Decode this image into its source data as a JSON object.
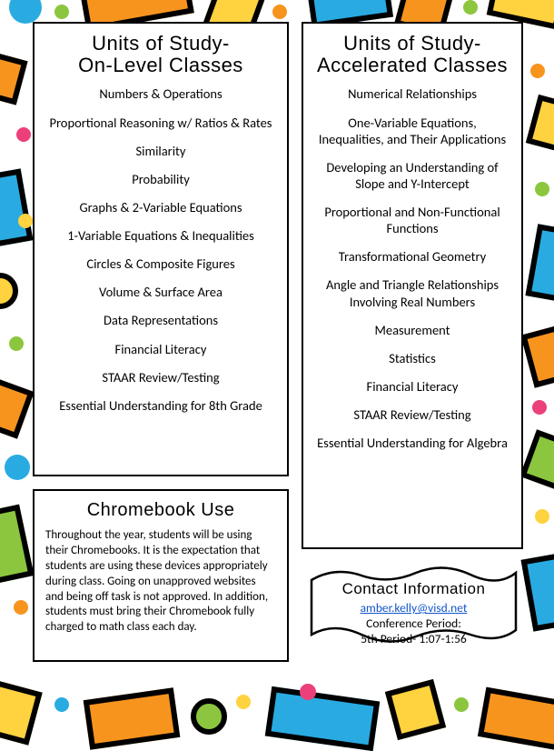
{
  "onLevel": {
    "title1": "Units of Study-",
    "title2": "On-Level Classes",
    "items": [
      "Numbers & Operations",
      "Proportional Reasoning w/ Ratios & Rates",
      "Similarity",
      "Probability",
      "Graphs & 2-Variable Equations",
      "1-Variable Equations & Inequalities",
      "Circles & Composite Figures",
      "Volume & Surface Area",
      "Data Representations",
      "Financial Literacy",
      "STAAR Review/Testing",
      "Essential Understanding for 8th Grade"
    ]
  },
  "accelerated": {
    "title1": "Units of Study-",
    "title2": "Accelerated Classes",
    "items": [
      "Numerical Relationships",
      "One-Variable Equations, Inequalities, and Their Applications",
      "Developing an Understanding of Slope and Y-Intercept",
      "Proportional and Non-Functional Functions",
      "Transformational Geometry",
      "Angle and Triangle Relationships Involving Real Numbers",
      "Measurement",
      "Statistics",
      "Financial Literacy",
      "STAAR Review/Testing",
      "Essential Understanding for Algebra"
    ]
  },
  "chromebook": {
    "title": "Chromebook Use",
    "body": "Throughout the year, students will be using their Chromebooks.  It is the expectation that students are using these devices appropriately during class.  Going on unapproved websites and being off task is not approved.  In addition, students must bring their Chromebook fully charged to math class each day."
  },
  "contact": {
    "title": "Contact Information",
    "email": "amber.kelly@visd.net",
    "line1": "Conference Period:",
    "line2": "5th Period- 1:07-1:56"
  },
  "colors": {
    "orange": "#f7941e",
    "yellow": "#ffd23f",
    "blue": "#29abe2",
    "green": "#8cc63f",
    "pink": "#ec407a",
    "black": "#000000"
  }
}
